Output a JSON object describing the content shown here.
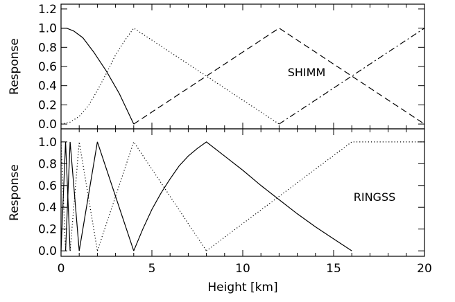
{
  "chart_data": [
    {
      "type": "line",
      "panel_label": "SHIMM",
      "ylabel": "Response",
      "xlim": [
        0,
        20
      ],
      "ylim": [
        -0.05,
        1.25
      ],
      "yticks": [
        "0.0",
        "0.2",
        "0.4",
        "0.6",
        "0.8",
        "1.0",
        "1.2"
      ],
      "series": [
        {
          "style": "solid",
          "points": [
            [
              0,
              1.0
            ],
            [
              0.3,
              1.0
            ],
            [
              0.7,
              0.97
            ],
            [
              1.2,
              0.9
            ],
            [
              1.8,
              0.75
            ],
            [
              2.5,
              0.55
            ],
            [
              3.2,
              0.32
            ],
            [
              4.0,
              0.0
            ]
          ]
        },
        {
          "style": "dotted",
          "points": [
            [
              0,
              0.0
            ],
            [
              0.5,
              0.02
            ],
            [
              1.0,
              0.08
            ],
            [
              1.5,
              0.19
            ],
            [
              2.0,
              0.35
            ],
            [
              2.5,
              0.53
            ],
            [
              3.0,
              0.72
            ],
            [
              3.5,
              0.87
            ],
            [
              4.0,
              1.0
            ],
            [
              12.0,
              0.0
            ]
          ]
        },
        {
          "style": "dashed",
          "points": [
            [
              4.0,
              0.0
            ],
            [
              12.0,
              1.0
            ],
            [
              20.0,
              0.0
            ]
          ]
        },
        {
          "style": "dashdot",
          "points": [
            [
              12.0,
              0.0
            ],
            [
              20.0,
              1.0
            ]
          ]
        }
      ]
    },
    {
      "type": "line",
      "panel_label": "RINGSS",
      "ylabel": "Response",
      "xlabel": "Height [km]",
      "xlim": [
        0,
        20
      ],
      "ylim": [
        -0.05,
        1.12
      ],
      "xticks": [
        "0",
        "5",
        "10",
        "15",
        "20"
      ],
      "yticks": [
        "0.0",
        "0.2",
        "0.4",
        "0.6",
        "0.8",
        "1.0"
      ],
      "series": [
        {
          "style": "solid",
          "points": [
            [
              0,
              0.0
            ],
            [
              0.25,
              1.0
            ],
            [
              0.5,
              0.0
            ]
          ]
        },
        {
          "style": "dotted",
          "points": [
            [
              0,
              1.0
            ],
            [
              0.25,
              0.0
            ]
          ]
        },
        {
          "style": "solid",
          "points": [
            [
              0.25,
              0.0
            ],
            [
              0.5,
              1.0
            ],
            [
              1.0,
              0.0
            ]
          ]
        },
        {
          "style": "dotted",
          "points": [
            [
              0.5,
              0.0
            ],
            [
              1.0,
              1.0
            ],
            [
              2.0,
              0.0
            ]
          ]
        },
        {
          "style": "solid",
          "points": [
            [
              1.0,
              0.0
            ],
            [
              2.0,
              1.0
            ],
            [
              4.0,
              0.0
            ]
          ]
        },
        {
          "style": "dotted",
          "points": [
            [
              2.0,
              0.0
            ],
            [
              4.0,
              1.0
            ],
            [
              8.0,
              0.0
            ]
          ]
        },
        {
          "style": "solid",
          "points": [
            [
              4.0,
              0.0
            ],
            [
              4.5,
              0.2
            ],
            [
              5.0,
              0.38
            ],
            [
              5.5,
              0.53
            ],
            [
              6.0,
              0.66
            ],
            [
              6.5,
              0.78
            ],
            [
              7.0,
              0.87
            ],
            [
              7.5,
              0.94
            ],
            [
              8.0,
              1.0
            ],
            [
              9.0,
              0.87
            ],
            [
              10.0,
              0.74
            ],
            [
              11.0,
              0.6
            ],
            [
              12.0,
              0.47
            ],
            [
              13.0,
              0.34
            ],
            [
              14.0,
              0.22
            ],
            [
              15.0,
              0.11
            ],
            [
              16.0,
              0.0
            ]
          ]
        },
        {
          "style": "dotted",
          "points": [
            [
              8.0,
              0.0
            ],
            [
              16.0,
              1.0
            ],
            [
              20.0,
              1.0
            ]
          ]
        }
      ]
    }
  ]
}
